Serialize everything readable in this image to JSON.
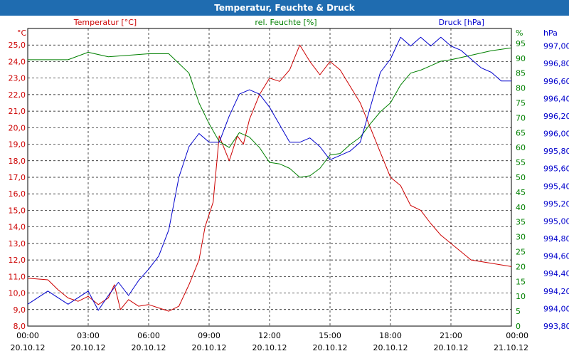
{
  "window": {
    "title": "Temperatur, Feuchte & Druck"
  },
  "chart_data": {
    "type": "line",
    "title": "Temperatur, Feuchte & Druck",
    "grid": true,
    "x": {
      "ticks": [
        {
          "time": "00:00",
          "date": "20.10.12"
        },
        {
          "time": "03:00",
          "date": "20.10.12"
        },
        {
          "time": "06:00",
          "date": "20.10.12"
        },
        {
          "time": "09:00",
          "date": "20.10.12"
        },
        {
          "time": "12:00",
          "date": "20.10.12"
        },
        {
          "time": "15:00",
          "date": "20.10.12"
        },
        {
          "time": "18:00",
          "date": "20.10.12"
        },
        {
          "time": "21:00",
          "date": "20.10.12"
        },
        {
          "time": "00:00",
          "date": "21.10.12"
        }
      ],
      "range_hours": [
        0,
        24
      ]
    },
    "axes": {
      "temperature": {
        "label": "Temperatur [°C]",
        "unit": "°C",
        "color": "#cc0000",
        "side": "left",
        "range": [
          8,
          26
        ],
        "ticks": [
          "8,0",
          "9,0",
          "10,0",
          "11,0",
          "12,0",
          "13,0",
          "14,0",
          "15,0",
          "16,0",
          "17,0",
          "18,0",
          "19,0",
          "20,0",
          "21,0",
          "22,0",
          "23,0",
          "24,0",
          "25,0"
        ]
      },
      "humidity": {
        "label": "rel. Feuchte [%]",
        "unit": "%",
        "color": "#008000",
        "side": "right",
        "range": [
          0,
          100
        ],
        "ticks": [
          "0",
          "5",
          "10",
          "15",
          "20",
          "25",
          "30",
          "35",
          "40",
          "45",
          "50",
          "55",
          "60",
          "65",
          "70",
          "75",
          "80",
          "85",
          "90",
          "95"
        ]
      },
      "pressure": {
        "label": "Druck [hPa]",
        "unit": "hPa",
        "color": "#0000cc",
        "side": "right-outer",
        "range": [
          993.8,
          997.2
        ],
        "ticks": [
          "993,80",
          "994,00",
          "994,20",
          "994,40",
          "994,60",
          "994,80",
          "995,00",
          "995,20",
          "995,40",
          "995,60",
          "995,80",
          "996,00",
          "996,20",
          "996,40",
          "996,60",
          "996,80",
          "997,00"
        ]
      }
    },
    "series": [
      {
        "name": "Temperatur [°C]",
        "axis": "temperature",
        "points": [
          [
            0,
            10.9
          ],
          [
            1,
            10.8
          ],
          [
            1.5,
            10.2
          ],
          [
            2,
            9.7
          ],
          [
            2.5,
            9.5
          ],
          [
            3,
            9.8
          ],
          [
            3.5,
            9.3
          ],
          [
            4,
            9.7
          ],
          [
            4.3,
            10.5
          ],
          [
            4.6,
            9.0
          ],
          [
            5,
            9.6
          ],
          [
            5.5,
            9.2
          ],
          [
            6,
            9.3
          ],
          [
            6.5,
            9.1
          ],
          [
            7,
            8.9
          ],
          [
            7.5,
            9.2
          ],
          [
            8,
            10.5
          ],
          [
            8.5,
            12.0
          ],
          [
            8.8,
            14.0
          ],
          [
            9.2,
            15.5
          ],
          [
            9.5,
            19.5
          ],
          [
            10,
            18.0
          ],
          [
            10.4,
            19.5
          ],
          [
            10.7,
            19.0
          ],
          [
            11,
            20.5
          ],
          [
            11.5,
            22.0
          ],
          [
            12,
            23.0
          ],
          [
            12.5,
            22.8
          ],
          [
            13,
            23.5
          ],
          [
            13.5,
            25.0
          ],
          [
            14,
            24.0
          ],
          [
            14.5,
            23.2
          ],
          [
            15,
            24.0
          ],
          [
            15.5,
            23.5
          ],
          [
            16,
            22.5
          ],
          [
            16.5,
            21.5
          ],
          [
            17,
            20.0
          ],
          [
            17.5,
            18.5
          ],
          [
            18,
            17.0
          ],
          [
            18.5,
            16.5
          ],
          [
            19,
            15.3
          ],
          [
            19.5,
            15.0
          ],
          [
            20,
            14.2
          ],
          [
            20.5,
            13.5
          ],
          [
            21,
            13.0
          ],
          [
            21.5,
            12.5
          ],
          [
            22,
            12.0
          ],
          [
            23,
            11.8
          ],
          [
            24,
            11.6
          ]
        ]
      },
      {
        "name": "rel. Feuchte [%]",
        "axis": "humidity",
        "points": [
          [
            0,
            89.5
          ],
          [
            1,
            89.5
          ],
          [
            2,
            89.5
          ],
          [
            3,
            92.0
          ],
          [
            4,
            90.5
          ],
          [
            5,
            91.0
          ],
          [
            6,
            91.5
          ],
          [
            7,
            91.5
          ],
          [
            8,
            85.0
          ],
          [
            8.5,
            75.0
          ],
          [
            9,
            68.0
          ],
          [
            9.5,
            62.0
          ],
          [
            10,
            60.0
          ],
          [
            10.5,
            65.0
          ],
          [
            11,
            63.5
          ],
          [
            11.5,
            60.0
          ],
          [
            12,
            55.0
          ],
          [
            12.5,
            54.5
          ],
          [
            13,
            53.0
          ],
          [
            13.5,
            50.0
          ],
          [
            14,
            50.5
          ],
          [
            14.5,
            53.0
          ],
          [
            15,
            57.5
          ],
          [
            15.5,
            58.0
          ],
          [
            16,
            61.0
          ],
          [
            16.5,
            63.5
          ],
          [
            17,
            68.0
          ],
          [
            17.5,
            72.0
          ],
          [
            18,
            75.0
          ],
          [
            18.5,
            81.0
          ],
          [
            19,
            85.0
          ],
          [
            19.5,
            86.0
          ],
          [
            20,
            87.5
          ],
          [
            20.5,
            89.0
          ],
          [
            21,
            89.5
          ],
          [
            22,
            91.0
          ],
          [
            23,
            92.5
          ],
          [
            24,
            93.5
          ]
        ]
      },
      {
        "name": "Druck [hPa]",
        "axis": "pressure",
        "points": [
          [
            0,
            994.05
          ],
          [
            1,
            994.2
          ],
          [
            2,
            994.05
          ],
          [
            3,
            994.2
          ],
          [
            3.5,
            993.98
          ],
          [
            4,
            994.15
          ],
          [
            4.5,
            994.3
          ],
          [
            5,
            994.15
          ],
          [
            5.5,
            994.32
          ],
          [
            6,
            994.45
          ],
          [
            6.5,
            994.6
          ],
          [
            7,
            994.9
          ],
          [
            7.5,
            995.5
          ],
          [
            8,
            995.85
          ],
          [
            8.5,
            996.0
          ],
          [
            9,
            995.9
          ],
          [
            9.5,
            995.9
          ],
          [
            10,
            996.2
          ],
          [
            10.5,
            996.45
          ],
          [
            11,
            996.5
          ],
          [
            11.5,
            996.45
          ],
          [
            12,
            996.3
          ],
          [
            12.5,
            996.1
          ],
          [
            13,
            995.9
          ],
          [
            13.5,
            995.9
          ],
          [
            14,
            995.95
          ],
          [
            14.5,
            995.85
          ],
          [
            15,
            995.7
          ],
          [
            15.5,
            995.75
          ],
          [
            16,
            995.8
          ],
          [
            16.5,
            995.9
          ],
          [
            17,
            996.3
          ],
          [
            17.5,
            996.7
          ],
          [
            18,
            996.85
          ],
          [
            18.5,
            997.1
          ],
          [
            19,
            997.0
          ],
          [
            19.5,
            997.1
          ],
          [
            20,
            997.0
          ],
          [
            20.5,
            997.1
          ],
          [
            21,
            997.0
          ],
          [
            21.5,
            996.95
          ],
          [
            22,
            996.85
          ],
          [
            22.5,
            996.75
          ],
          [
            23,
            996.7
          ],
          [
            23.5,
            996.6
          ],
          [
            24,
            996.6
          ]
        ]
      }
    ]
  }
}
